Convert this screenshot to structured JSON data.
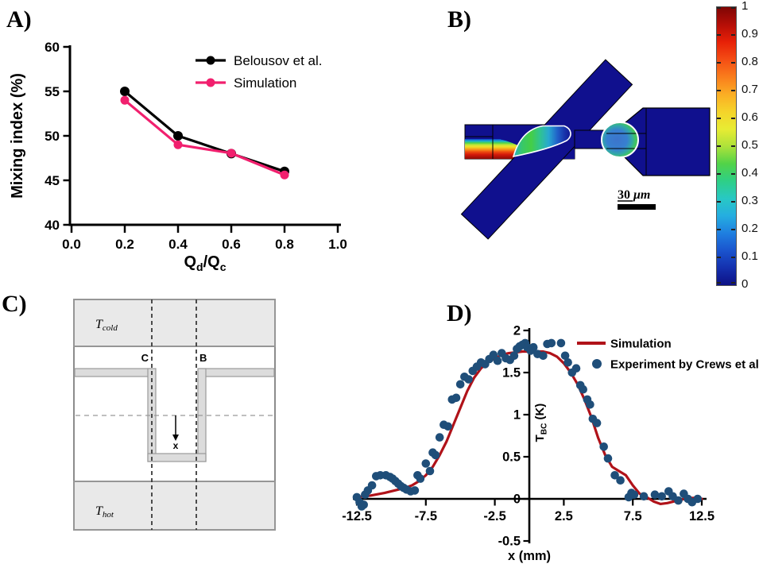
{
  "panelA": {
    "label": "A)"
  },
  "panelB": {
    "label": "B)",
    "scalebar": {
      "value": "30",
      "unit": "μm"
    },
    "channel_color": "#10108E",
    "colorbar": {
      "min": 0,
      "max": 1,
      "ticks": [
        "1",
        "0.9",
        "0.8",
        "0.7",
        "0.6",
        "0.5",
        "0.4",
        "0.3",
        "0.2",
        "0.1",
        "0"
      ],
      "gradient": [
        "#7F0604",
        "#B50E07",
        "#E72007",
        "#F44D14",
        "#F97C1C",
        "#FBAD24",
        "#F5D32A",
        "#E8EC33",
        "#AEE23A",
        "#52D348",
        "#2ECF86",
        "#28C8C4",
        "#25AEE0",
        "#1F7FE0",
        "#1A54CE",
        "#1430AE",
        "#0D1185"
      ]
    }
  },
  "panelC": {
    "label": "C)",
    "t_cold": {
      "base": "T",
      "sub": "cold"
    },
    "t_hot": {
      "base": "T",
      "sub": "hot"
    },
    "line_c": "C",
    "line_b": "B",
    "axis_label": "x"
  },
  "panelD": {
    "label": "D)"
  },
  "chart_data": [
    {
      "id": "panel-a",
      "type": "line",
      "title": "",
      "xlabel": "Qd/Qc",
      "xlabel_parts": [
        {
          "t": "Q"
        },
        {
          "t": "d",
          "sub": true
        },
        {
          "t": "/Q"
        },
        {
          "t": "c",
          "sub": true
        }
      ],
      "ylabel": "Mixing index (%)",
      "xlim": [
        0,
        1
      ],
      "ylim": [
        40,
        60
      ],
      "grid": false,
      "legend_position": "top-right",
      "xticks": [
        {
          "v": 0,
          "t": "0.0"
        },
        {
          "v": 0.2,
          "t": "0.2"
        },
        {
          "v": 0.4,
          "t": "0.4"
        },
        {
          "v": 0.6,
          "t": "0.6"
        },
        {
          "v": 0.8,
          "t": "0.8"
        },
        {
          "v": 1,
          "t": "1.0"
        }
      ],
      "yticks": [
        {
          "v": 40,
          "t": "40"
        },
        {
          "v": 45,
          "t": "45"
        },
        {
          "v": 50,
          "t": "50"
        },
        {
          "v": 55,
          "t": "55"
        },
        {
          "v": 60,
          "t": "60"
        }
      ],
      "series": [
        {
          "name": "Belousov et al.",
          "color": "#000000",
          "marker": "circle",
          "x": [
            0.2,
            0.4,
            0.6,
            0.8
          ],
          "y": [
            55,
            50,
            48,
            46
          ]
        },
        {
          "name": "Simulation",
          "color": "#F1206E",
          "marker": "circle",
          "x": [
            0.2,
            0.4,
            0.6,
            0.8
          ],
          "y": [
            54,
            49,
            48.05,
            45.6
          ]
        }
      ]
    },
    {
      "id": "panel-d",
      "type": "line+scatter",
      "title": "",
      "xlabel": "x (mm)",
      "ylabel": "TBC (K)",
      "ylabel_parts": [
        {
          "t": "T"
        },
        {
          "t": "BC",
          "sub": true
        },
        {
          "t": " (K)"
        }
      ],
      "xlim": [
        -13,
        13
      ],
      "ylim": [
        -0.5,
        2
      ],
      "grid": false,
      "legend_position": "top-right",
      "xticks": [
        {
          "v": -12.5,
          "t": "-12.5"
        },
        {
          "v": -7.5,
          "t": "-7.5"
        },
        {
          "v": -2.5,
          "t": "-2.5"
        },
        {
          "v": 2.5,
          "t": "2.5"
        },
        {
          "v": 7.5,
          "t": "7.5"
        },
        {
          "v": 12.5,
          "t": "12.5"
        }
      ],
      "yticks": [
        {
          "v": -0.5,
          "t": "-0.5"
        },
        {
          "v": 0,
          "t": "0"
        },
        {
          "v": 0.5,
          "t": "0.5"
        },
        {
          "v": 1,
          "t": "1"
        },
        {
          "v": 1.5,
          "t": "1.5"
        },
        {
          "v": 2,
          "t": "2"
        }
      ],
      "series": [
        {
          "name": "Simulation",
          "type": "line",
          "color": "#B01219",
          "points": [
            [
              -12.5,
              0.02
            ],
            [
              -11.5,
              0.04
            ],
            [
              -10.5,
              0.07
            ],
            [
              -9.5,
              0.11
            ],
            [
              -9.0,
              0.13
            ],
            [
              -8.5,
              0.16
            ],
            [
              -8.0,
              0.21
            ],
            [
              -7.5,
              0.28
            ],
            [
              -7.0,
              0.38
            ],
            [
              -6.5,
              0.52
            ],
            [
              -6.0,
              0.68
            ],
            [
              -5.5,
              0.88
            ],
            [
              -5.0,
              1.08
            ],
            [
              -4.5,
              1.28
            ],
            [
              -4.0,
              1.44
            ],
            [
              -3.5,
              1.55
            ],
            [
              -3.0,
              1.62
            ],
            [
              -2.5,
              1.67
            ],
            [
              -2.0,
              1.71
            ],
            [
              -1.5,
              1.73
            ],
            [
              -1.0,
              1.74
            ],
            [
              -0.5,
              1.75
            ],
            [
              0.0,
              1.75
            ],
            [
              0.5,
              1.75
            ],
            [
              1.0,
              1.75
            ],
            [
              1.5,
              1.73
            ],
            [
              2.0,
              1.69
            ],
            [
              2.5,
              1.61
            ],
            [
              3.0,
              1.5
            ],
            [
              3.5,
              1.36
            ],
            [
              4.0,
              1.18
            ],
            [
              4.5,
              0.97
            ],
            [
              5.0,
              0.72
            ],
            [
              5.5,
              0.52
            ],
            [
              6.0,
              0.38
            ],
            [
              6.5,
              0.33
            ],
            [
              7.0,
              0.28
            ],
            [
              7.5,
              0.16
            ],
            [
              8.0,
              0.06
            ],
            [
              8.5,
              0.02
            ],
            [
              9.0,
              -0.03
            ],
            [
              9.5,
              -0.06
            ],
            [
              10.0,
              -0.05
            ],
            [
              10.5,
              -0.03
            ],
            [
              11.0,
              -0.01
            ],
            [
              11.5,
              0.01
            ],
            [
              12.0,
              0.01
            ],
            [
              12.5,
              0.0
            ]
          ]
        },
        {
          "name": "Experiment by Crews et al.",
          "type": "scatter",
          "color": "#1F4E79",
          "points": [
            [
              -12.5,
              0.02
            ],
            [
              -12.3,
              -0.04
            ],
            [
              -12.15,
              -0.09
            ],
            [
              -12.0,
              -0.07
            ],
            [
              -11.9,
              0.05
            ],
            [
              -11.7,
              0.1
            ],
            [
              -11.4,
              0.16
            ],
            [
              -11.1,
              0.27
            ],
            [
              -10.8,
              0.28
            ],
            [
              -10.4,
              0.28
            ],
            [
              -10.1,
              0.26
            ],
            [
              -9.9,
              0.24
            ],
            [
              -9.7,
              0.21
            ],
            [
              -9.5,
              0.18
            ],
            [
              -9.3,
              0.15
            ],
            [
              -9.1,
              0.13
            ],
            [
              -8.9,
              0.11
            ],
            [
              -8.6,
              0.09
            ],
            [
              -8.3,
              0.1
            ],
            [
              -8.1,
              0.28
            ],
            [
              -7.9,
              0.24
            ],
            [
              -7.5,
              0.42
            ],
            [
              -7.2,
              0.33
            ],
            [
              -7.0,
              0.55
            ],
            [
              -6.8,
              0.52
            ],
            [
              -6.5,
              0.73
            ],
            [
              -6.2,
              0.88
            ],
            [
              -5.9,
              0.86
            ],
            [
              -5.6,
              1.18
            ],
            [
              -5.3,
              1.2
            ],
            [
              -5.0,
              1.36
            ],
            [
              -4.7,
              1.45
            ],
            [
              -4.4,
              1.42
            ],
            [
              -4.1,
              1.52
            ],
            [
              -3.8,
              1.57
            ],
            [
              -3.5,
              1.62
            ],
            [
              -3.2,
              1.6
            ],
            [
              -2.9,
              1.66
            ],
            [
              -2.6,
              1.71
            ],
            [
              -2.3,
              1.64
            ],
            [
              -2.0,
              1.73
            ],
            [
              -1.7,
              1.67
            ],
            [
              -1.4,
              1.65
            ],
            [
              -1.1,
              1.7
            ],
            [
              -0.9,
              1.78
            ],
            [
              -0.7,
              1.81
            ],
            [
              -0.5,
              1.83
            ],
            [
              -0.3,
              1.85
            ],
            [
              -0.15,
              1.8
            ],
            [
              0.1,
              1.76
            ],
            [
              0.3,
              1.8
            ],
            [
              0.6,
              1.72
            ],
            [
              1.0,
              1.7
            ],
            [
              1.3,
              1.84
            ],
            [
              1.6,
              1.85
            ],
            [
              2.3,
              1.85
            ],
            [
              2.6,
              1.7
            ],
            [
              2.8,
              1.62
            ],
            [
              3.1,
              1.5
            ],
            [
              3.4,
              1.55
            ],
            [
              3.7,
              1.35
            ],
            [
              3.9,
              1.3
            ],
            [
              4.2,
              1.18
            ],
            [
              4.4,
              1.12
            ],
            [
              4.6,
              0.95
            ],
            [
              4.9,
              0.9
            ],
            [
              5.4,
              0.62
            ],
            [
              5.7,
              0.48
            ],
            [
              6.2,
              0.28
            ],
            [
              6.6,
              0.22
            ],
            [
              7.2,
              0.02
            ],
            [
              7.4,
              0.07
            ],
            [
              7.6,
              0.05
            ],
            [
              8.3,
              0.03
            ],
            [
              9.1,
              0.05
            ],
            [
              9.6,
              0.03
            ],
            [
              10.1,
              0.09
            ],
            [
              10.4,
              0.03
            ],
            [
              10.8,
              -0.02
            ],
            [
              11.2,
              0.06
            ],
            [
              11.5,
              0.0
            ],
            [
              11.8,
              -0.04
            ],
            [
              12.2,
              0.0
            ]
          ]
        }
      ]
    }
  ]
}
